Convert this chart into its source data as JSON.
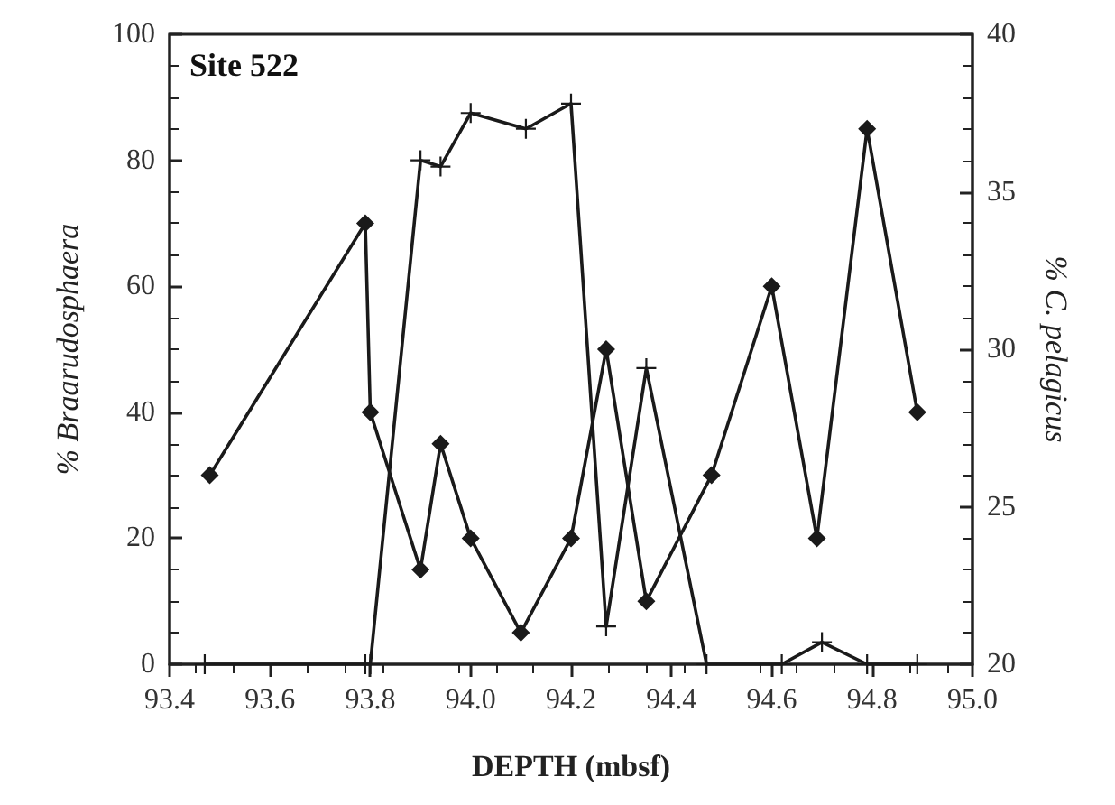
{
  "chart_data": {
    "type": "line",
    "title": "Site 522",
    "xlabel": "DEPTH (mbsf)",
    "ylabel": "% Braarudosphaera",
    "y2label": "% C. pelagicus",
    "xlim": [
      93.4,
      95.0
    ],
    "xticks": [
      93.4,
      93.6,
      93.8,
      {
        "value": 94.0,
        "label": "94.0"
      },
      94.2,
      94.4,
      94.6,
      94.8,
      {
        "value": 95.0,
        "label": "95.0"
      }
    ],
    "ylim": [
      0,
      100
    ],
    "yticks": [
      0,
      20,
      40,
      60,
      80,
      100
    ],
    "y2lim": [
      20,
      40
    ],
    "y2ticks": [
      20,
      25,
      30,
      35,
      40
    ],
    "grid": false,
    "line_style": "solid",
    "series": [
      {
        "color": "#1a1a1a",
        "marker": "diamond",
        "x": [
          93.48,
          93.79,
          93.8,
          93.9,
          93.94,
          94.0,
          94.1,
          94.2,
          94.27,
          94.35,
          94.48,
          94.6,
          94.69,
          94.79,
          94.89
        ],
        "values": [
          30,
          70,
          40,
          15,
          35,
          20,
          5,
          20,
          50,
          10,
          30,
          60,
          20,
          85,
          40
        ]
      },
      {
        "color": "#1a1a1a",
        "marker": "cross",
        "axis": "y2",
        "x": [
          93.47,
          93.79,
          93.8,
          93.9,
          93.94,
          94.0,
          94.11,
          94.2,
          94.27,
          94.35,
          94.47,
          94.62,
          94.7,
          94.79,
          94.89
        ],
        "values": [
          20,
          20,
          20,
          36,
          35.8,
          37.5,
          37,
          37.8,
          21.2,
          29.4,
          20,
          20,
          20.7,
          20,
          20
        ]
      }
    ]
  }
}
